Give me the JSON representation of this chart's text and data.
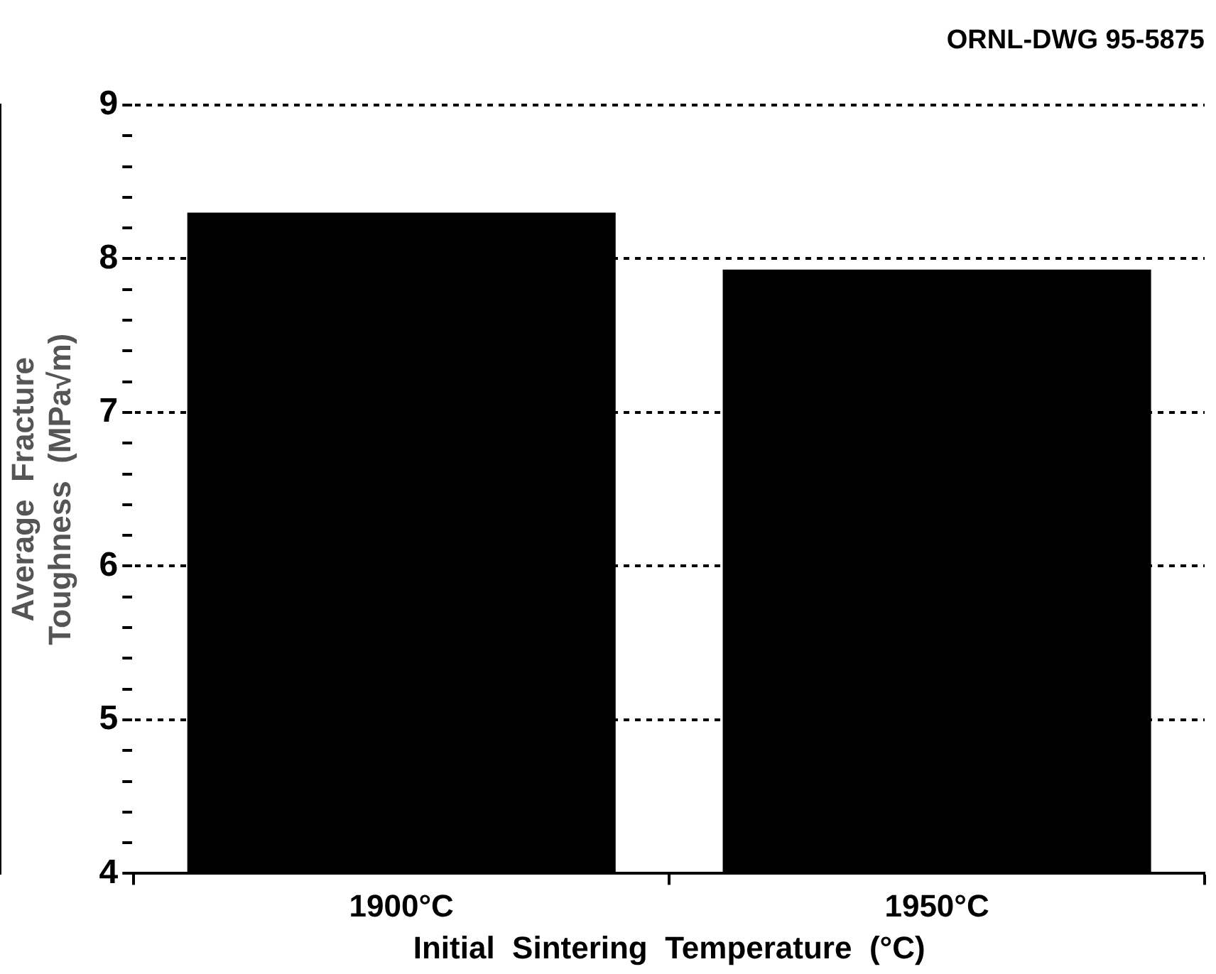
{
  "chart_data": {
    "type": "bar",
    "annotations": [
      "ORNL-DWG 95-5875"
    ],
    "categories": [
      "1900°C",
      "1950°C"
    ],
    "values": [
      8.3,
      7.93
    ],
    "color": "#000000",
    "xlabel": "Initial  Sintering  Temperature  (°C)",
    "ylabel": "Average  Fracture\nToughness  (MPa√m)",
    "ylim": [
      4,
      9
    ],
    "yticks": [
      4,
      {
        "value": 4.2,
        "label": null
      },
      {
        "value": 4.4,
        "label": null
      },
      {
        "value": 4.6,
        "label": null
      },
      {
        "value": 4.8,
        "label": null
      },
      5,
      {
        "value": 5.2,
        "label": null
      },
      {
        "value": 5.4,
        "label": null
      },
      {
        "value": 5.6,
        "label": null
      },
      {
        "value": 5.8,
        "label": null
      },
      6,
      {
        "value": 6.2,
        "label": null
      },
      {
        "value": 6.4,
        "label": null
      },
      {
        "value": 6.6,
        "label": null
      },
      {
        "value": 6.8,
        "label": null
      },
      7,
      {
        "value": 7.2,
        "label": null
      },
      {
        "value": 7.4,
        "label": null
      },
      {
        "value": 7.6,
        "label": null
      },
      {
        "value": 7.8,
        "label": null
      },
      8,
      {
        "value": 8.2,
        "label": null
      },
      {
        "value": 8.4,
        "label": null
      },
      {
        "value": 8.6,
        "label": null
      },
      {
        "value": 8.8,
        "label": null
      },
      9
    ],
    "grid": "y",
    "line_style": "dashed"
  }
}
